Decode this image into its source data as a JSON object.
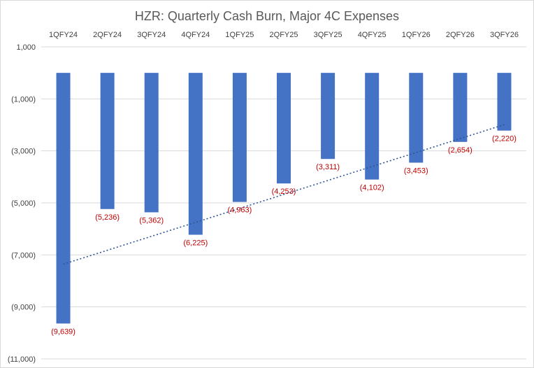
{
  "chart_data": {
    "type": "bar",
    "title": "HZR: Quarterly Cash Burn, Major 4C Expenses",
    "categories": [
      "1QFY24",
      "2QFY24",
      "3QFY24",
      "4QFY24",
      "1QFY25",
      "2QFY25",
      "3QFY25",
      "4QFY25",
      "1QFY26",
      "2QFY26",
      "3QFY26"
    ],
    "values": [
      -9639,
      -5236,
      -5362,
      -6225,
      -4963,
      -4253,
      -3311,
      -4102,
      -3453,
      -2654,
      -2220
    ],
    "data_labels": [
      "(9,639)",
      "(5,236)",
      "(5,362)",
      "(6,225)",
      "(4,963)",
      "(4,253)",
      "(3,311)",
      "(4,102)",
      "(3,453)",
      "(2,654)",
      "(2,220)"
    ],
    "ylim": [
      -11000,
      1000
    ],
    "y_ticks": [
      1000,
      -1000,
      -3000,
      -5000,
      -7000,
      -9000,
      -11000
    ],
    "y_tick_labels": [
      "1,000",
      "(1,000)",
      "(3,000)",
      "(5,000)",
      "(7,000)",
      "(9,000)",
      "(11,000)"
    ],
    "category_axis_position": "top",
    "grid": true,
    "trendline": {
      "type": "linear",
      "style": "dotted"
    },
    "colors": {
      "bar": "#4472c4",
      "data_label": "#c00000",
      "trendline": "#2f5597",
      "gridline": "#d9d9d9"
    }
  }
}
